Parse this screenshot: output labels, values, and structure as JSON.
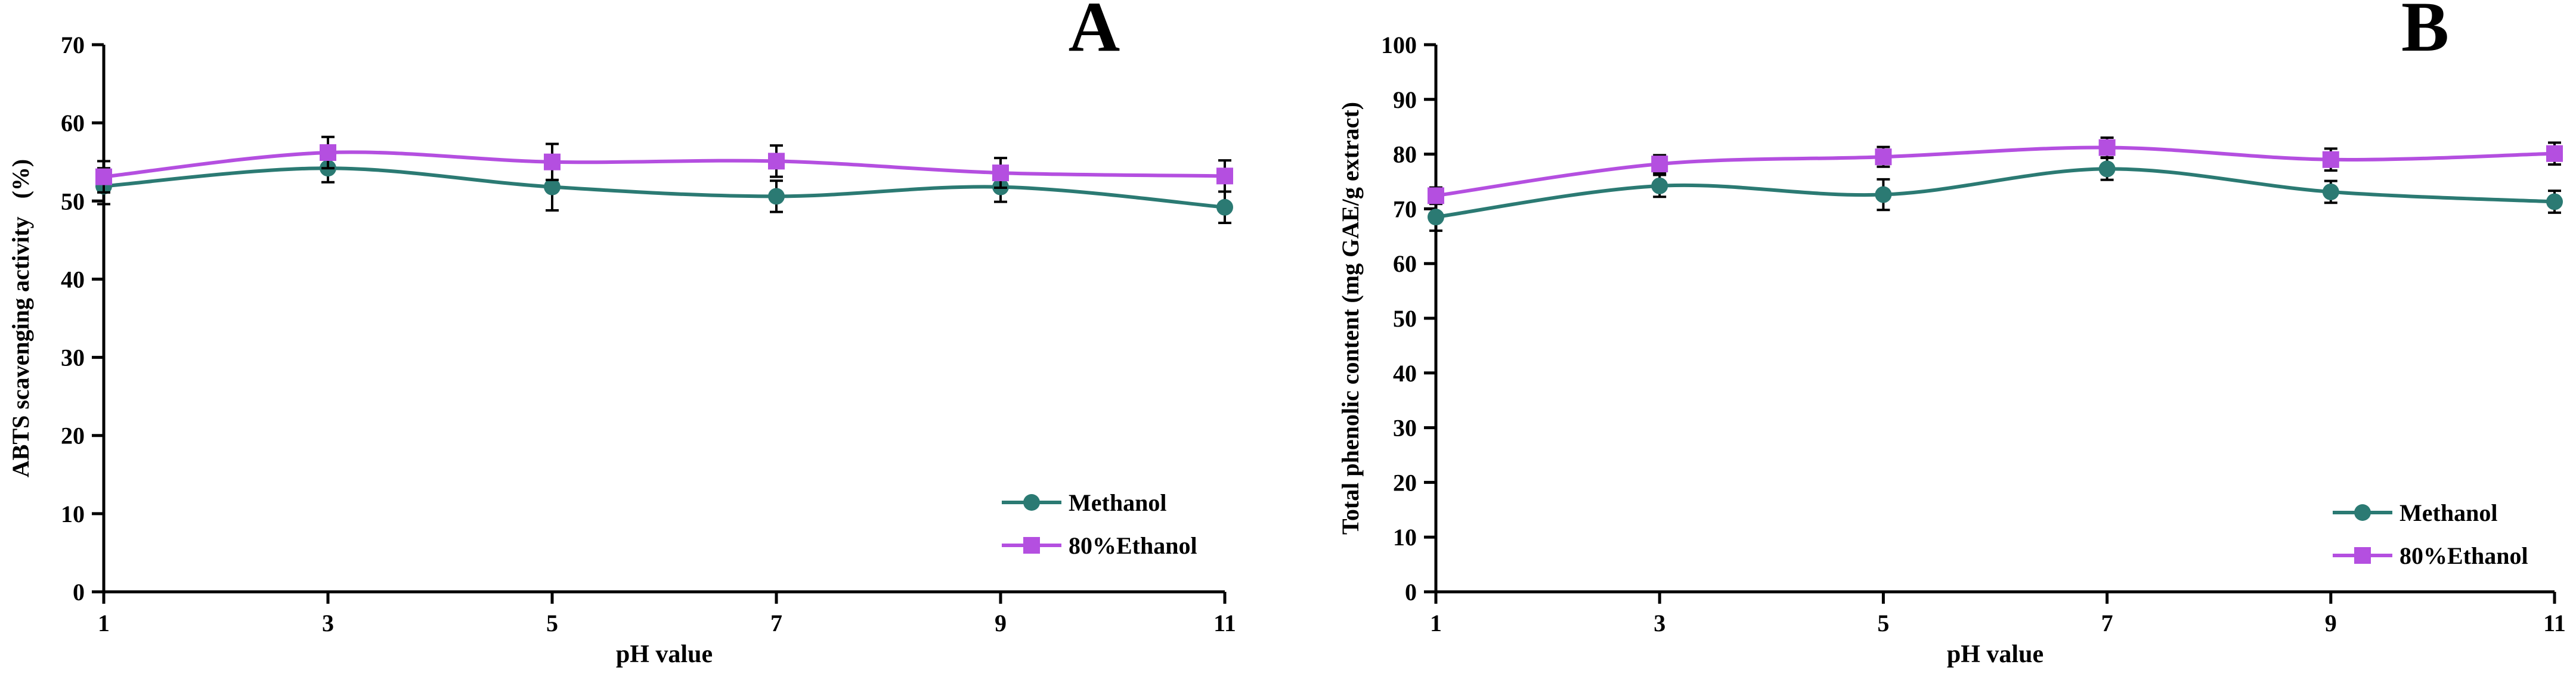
{
  "chart_data": [
    {
      "type": "line",
      "panel_label": "A",
      "xlabel": "pH value",
      "ylabel": "ABTS scavenging activity   (%)",
      "x": [
        1,
        3,
        5,
        7,
        9,
        11
      ],
      "xticks": [
        "1",
        "3",
        "5",
        "7",
        "9",
        "11"
      ],
      "yticks": [
        "0",
        "10",
        "20",
        "30",
        "40",
        "50",
        "60",
        "70"
      ],
      "xlim": [
        1,
        11
      ],
      "ylim": [
        0,
        70
      ],
      "grid": false,
      "legend_position": "bottom-right",
      "series": [
        {
          "name": "Methanol",
          "marker": "circle",
          "color": "#2b7a73",
          "values": [
            51.9,
            54.2,
            51.8,
            50.6,
            51.8,
            49.2
          ],
          "errors": [
            2.3,
            1.8,
            3.0,
            2.0,
            1.9,
            2.0
          ]
        },
        {
          "name": "80%Ethanol",
          "marker": "square",
          "color": "#b44fe0",
          "values": [
            53.1,
            56.2,
            55.0,
            55.1,
            53.6,
            53.2
          ],
          "errors": [
            2.0,
            2.0,
            2.3,
            2.0,
            1.9,
            2.0
          ]
        }
      ]
    },
    {
      "type": "line",
      "panel_label": "B",
      "xlabel": "pH value",
      "ylabel": "Total phenolic content (mg GAE/g extract)",
      "x": [
        1,
        3,
        5,
        7,
        9,
        11
      ],
      "xticks": [
        "1",
        "3",
        "5",
        "7",
        "9",
        "11"
      ],
      "yticks": [
        "0",
        "10",
        "20",
        "30",
        "40",
        "50",
        "60",
        "70",
        "80",
        "90",
        "100"
      ],
      "xlim": [
        1,
        11
      ],
      "ylim": [
        0,
        100
      ],
      "grid": false,
      "legend_position": "bottom-right",
      "series": [
        {
          "name": "Methanol",
          "marker": "circle",
          "color": "#2b7a73",
          "values": [
            68.5,
            74.2,
            72.6,
            77.3,
            73.1,
            71.3
          ],
          "errors": [
            2.5,
            2.0,
            2.8,
            2.0,
            2.0,
            2.0
          ]
        },
        {
          "name": "80%Ethanol",
          "marker": "square",
          "color": "#b44fe0",
          "values": [
            72.4,
            78.2,
            79.5,
            81.2,
            79.0,
            80.1
          ],
          "errors": [
            1.5,
            1.6,
            1.8,
            1.8,
            2.0,
            2.0
          ]
        }
      ]
    }
  ]
}
